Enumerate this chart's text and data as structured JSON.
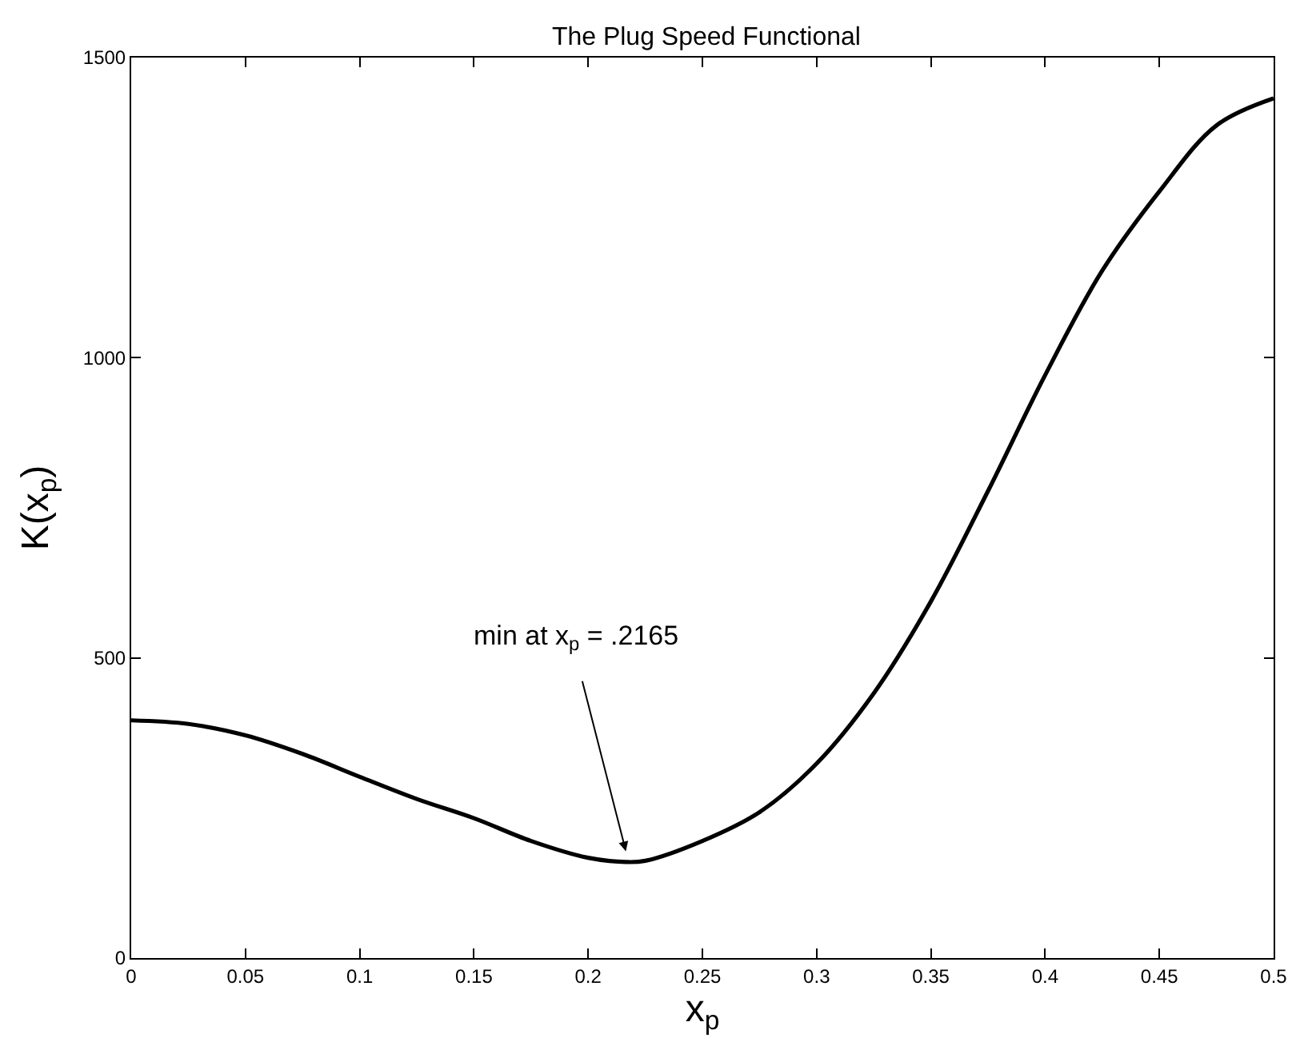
{
  "chart_data": {
    "type": "line",
    "title": "The Plug Speed Functional",
    "xlabel": "x$_{p}$",
    "ylabel": "K(x$_{p}$)",
    "x": [
      0,
      0.025,
      0.05,
      0.075,
      0.1,
      0.125,
      0.15,
      0.175,
      0.2,
      0.2165,
      0.225,
      0.25,
      0.275,
      0.3,
      0.325,
      0.35,
      0.375,
      0.4,
      0.425,
      0.45,
      0.475,
      0.5
    ],
    "series": [
      {
        "color": "#000000",
        "values": [
          396,
          390,
          371,
          340,
          302,
          265,
          233,
          195,
          167,
          160,
          162,
          195,
          243,
          324,
          441,
          594,
          778,
          971,
          1145,
          1277,
          1387,
          1432
        ]
      }
    ],
    "annotations": [
      {
        "text": "min at x$_{p}$ = .2165",
        "x": 0.2165,
        "y": 160
      }
    ],
    "xlim": [
      0,
      0.5
    ],
    "xticks": [
      0,
      0.05,
      0.1,
      0.15,
      0.2,
      0.25,
      0.3,
      0.35,
      0.4,
      0.45,
      0.5
    ],
    "ylim": [
      0,
      1500
    ],
    "yticks": [
      0,
      500,
      1000,
      1500
    ],
    "grid": false,
    "marker": "none",
    "line_style": "solid"
  }
}
